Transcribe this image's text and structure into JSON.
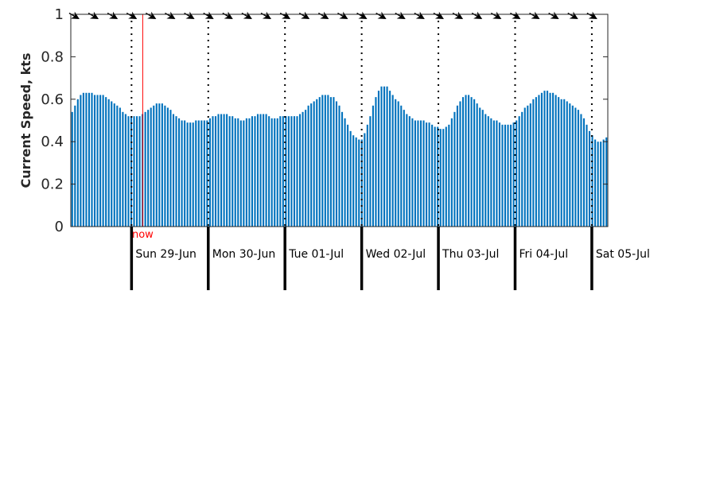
{
  "chart_data": {
    "type": "bar",
    "title": "",
    "xlabel": "",
    "ylabel": "Current Speed, kts",
    "ylim": [
      0,
      1
    ],
    "yticks": [
      0,
      0.2,
      0.4,
      0.6,
      0.8,
      1
    ],
    "ytick_labels": [
      "0",
      "0.2",
      "0.4",
      "0.6",
      "0.8",
      "1"
    ],
    "grid": false,
    "legend": "none",
    "x_unit": "hours",
    "x_range": [
      -19,
      149
    ],
    "bar_color": "#0072bd",
    "days": [
      {
        "label": "Sun 29-Jun",
        "hour": 0
      },
      {
        "label": "Mon 30-Jun",
        "hour": 24
      },
      {
        "label": "Tue 01-Jul",
        "hour": 48
      },
      {
        "label": "Wed 02-Jul",
        "hour": 72
      },
      {
        "label": "Thu 03-Jul",
        "hour": 96
      },
      {
        "label": "Fri 04-Jul",
        "hour": 120
      },
      {
        "label": "Sat 05-Jul",
        "hour": 144
      }
    ],
    "now": {
      "label": "now",
      "hour": 3.5,
      "color": "#ff0000"
    },
    "direction_arrows": {
      "hour_step": 6,
      "hour_start": -18,
      "heading_deg": 60,
      "color": "#000000"
    },
    "values": [
      0.54,
      0.57,
      0.6,
      0.62,
      0.63,
      0.63,
      0.63,
      0.63,
      0.62,
      0.62,
      0.62,
      0.62,
      0.61,
      0.6,
      0.59,
      0.58,
      0.57,
      0.56,
      0.54,
      0.53,
      0.52,
      0.52,
      0.52,
      0.52,
      0.52,
      0.53,
      0.54,
      0.55,
      0.56,
      0.57,
      0.58,
      0.58,
      0.58,
      0.57,
      0.56,
      0.55,
      0.53,
      0.52,
      0.51,
      0.5,
      0.5,
      0.49,
      0.49,
      0.49,
      0.5,
      0.5,
      0.5,
      0.5,
      0.5,
      0.51,
      0.52,
      0.52,
      0.53,
      0.53,
      0.53,
      0.53,
      0.52,
      0.52,
      0.51,
      0.51,
      0.5,
      0.5,
      0.51,
      0.51,
      0.52,
      0.52,
      0.53,
      0.53,
      0.53,
      0.53,
      0.52,
      0.51,
      0.51,
      0.51,
      0.52,
      0.52,
      0.52,
      0.52,
      0.52,
      0.52,
      0.52,
      0.53,
      0.54,
      0.55,
      0.57,
      0.58,
      0.59,
      0.6,
      0.61,
      0.62,
      0.62,
      0.62,
      0.61,
      0.61,
      0.59,
      0.57,
      0.54,
      0.51,
      0.48,
      0.45,
      0.43,
      0.42,
      0.41,
      0.41,
      0.44,
      0.48,
      0.52,
      0.57,
      0.61,
      0.64,
      0.66,
      0.66,
      0.66,
      0.64,
      0.62,
      0.6,
      0.59,
      0.57,
      0.55,
      0.53,
      0.52,
      0.51,
      0.5,
      0.5,
      0.5,
      0.5,
      0.49,
      0.49,
      0.48,
      0.47,
      0.47,
      0.46,
      0.46,
      0.47,
      0.48,
      0.51,
      0.54,
      0.57,
      0.59,
      0.61,
      0.62,
      0.62,
      0.61,
      0.6,
      0.58,
      0.56,
      0.55,
      0.53,
      0.52,
      0.51,
      0.5,
      0.5,
      0.49,
      0.48,
      0.48,
      0.48,
      0.48,
      0.49,
      0.5,
      0.52,
      0.54,
      0.56,
      0.57,
      0.58,
      0.6,
      0.61,
      0.62,
      0.63,
      0.64,
      0.64,
      0.63,
      0.63,
      0.62,
      0.61,
      0.6,
      0.6,
      0.59,
      0.58,
      0.57,
      0.56,
      0.55,
      0.53,
      0.51,
      0.48,
      0.45,
      0.43,
      0.41,
      0.4,
      0.4,
      0.41,
      0.42
    ]
  }
}
